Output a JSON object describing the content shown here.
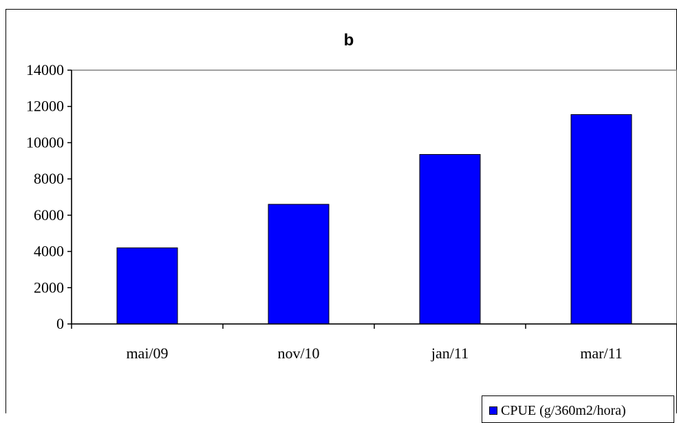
{
  "chart_data": {
    "type": "bar",
    "title": "b",
    "categories": [
      "mai/09",
      "nov/10",
      "jan/11",
      "mar/11"
    ],
    "series": [
      {
        "name": "CPUE (g/360m2/hora)",
        "values": [
          4200,
          6600,
          9350,
          11550
        ],
        "color": "#0000ff"
      }
    ],
    "ylim": [
      0,
      14000
    ],
    "y_ticks": [
      0,
      2000,
      4000,
      6000,
      8000,
      10000,
      12000,
      14000
    ],
    "xlabel": "",
    "ylabel": "",
    "grid": false,
    "legend": "bottom-right",
    "colors": {
      "bar_fill": "#0000ff",
      "bar_stroke": "#000000",
      "axis": "#808080",
      "frame": "#000000"
    }
  }
}
